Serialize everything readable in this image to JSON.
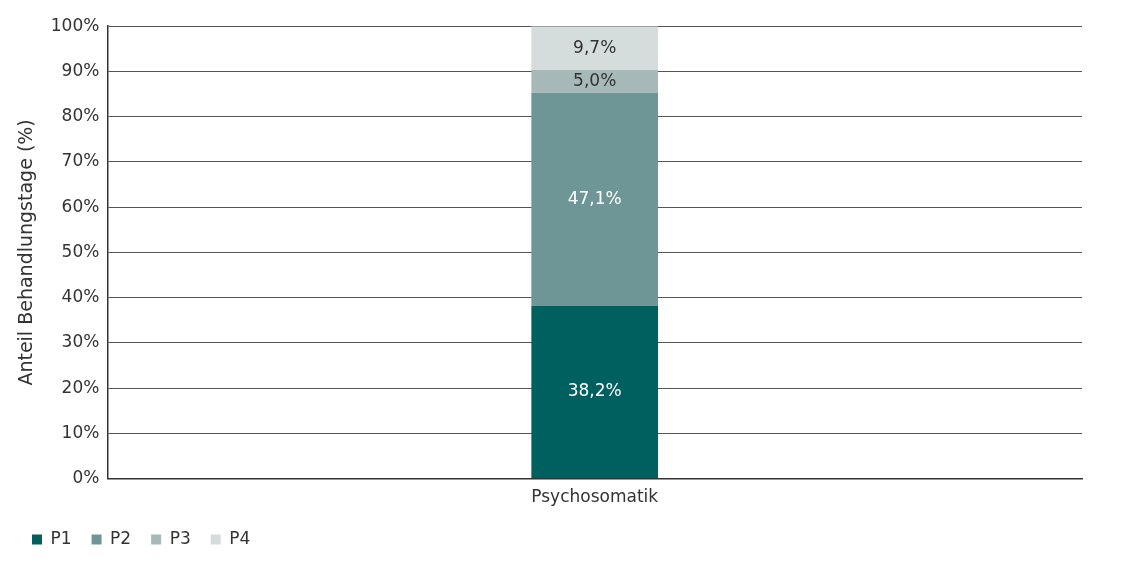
{
  "chart_data": {
    "type": "bar",
    "stacked": true,
    "ylabel": "Anteil Behandlungstage (%)",
    "categories": [
      "Psychosomatik"
    ],
    "series": [
      {
        "name": "P1",
        "color": "#005f5f",
        "values": [
          38.2
        ],
        "value_labels": [
          "38,2%"
        ]
      },
      {
        "name": "P2",
        "color": "#6e9696",
        "values": [
          47.1
        ],
        "value_labels": [
          "47,1%"
        ]
      },
      {
        "name": "P3",
        "color": "#a7b8b8",
        "values": [
          5.0
        ],
        "value_labels": [
          "5,0%"
        ]
      },
      {
        "name": "P4",
        "color": "#d5dcdc",
        "values": [
          9.7
        ],
        "value_labels": [
          "9,7%"
        ]
      }
    ],
    "ylim": [
      0,
      100
    ],
    "yticks": [
      {
        "value": 0,
        "label": "0%"
      },
      {
        "value": 10,
        "label": "10%"
      },
      {
        "value": 20,
        "label": "20%"
      },
      {
        "value": 30,
        "label": "30%"
      },
      {
        "value": 40,
        "label": "40%"
      },
      {
        "value": 50,
        "label": "50%"
      },
      {
        "value": 60,
        "label": "60%"
      },
      {
        "value": 70,
        "label": "70%"
      },
      {
        "value": 80,
        "label": "80%"
      },
      {
        "value": 90,
        "label": "90%"
      },
      {
        "value": 100,
        "label": "100%"
      }
    ],
    "grid": "y",
    "legend": "bottom left"
  }
}
